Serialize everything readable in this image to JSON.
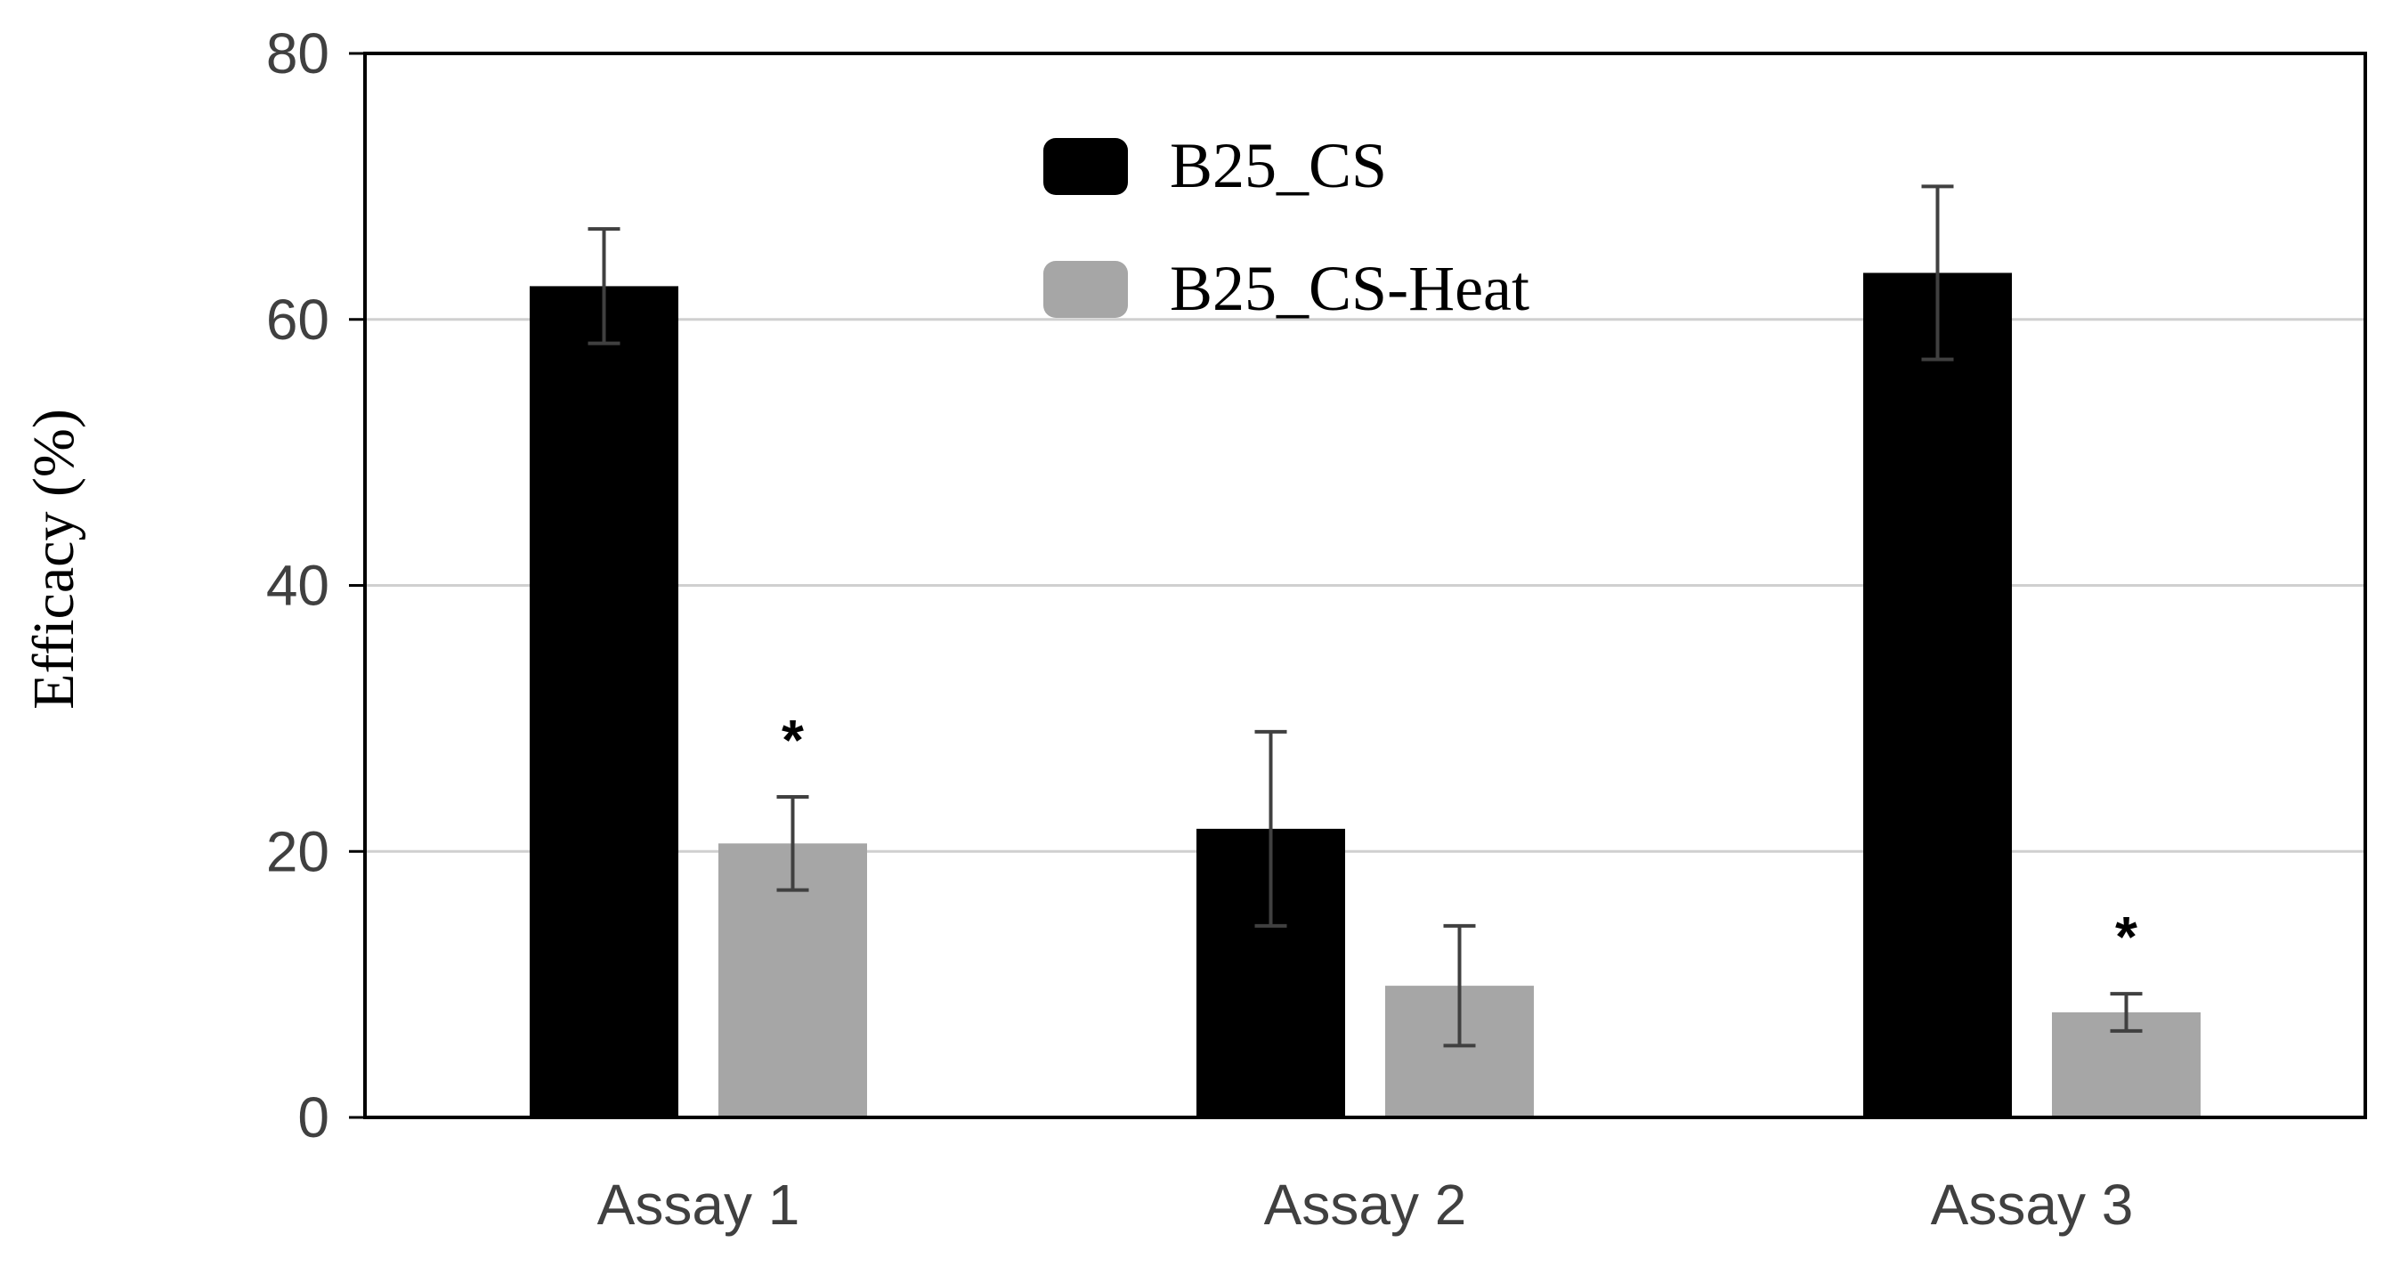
{
  "chart_data": {
    "type": "bar",
    "title": "",
    "xlabel": "",
    "ylabel": "Efficacy (%)",
    "ylim": [
      0,
      80
    ],
    "yticks": [
      0,
      20,
      40,
      60,
      80
    ],
    "grid": true,
    "legend_position": "top-center",
    "categories": [
      "Assay 1",
      "Assay 2",
      "Assay 3"
    ],
    "series": [
      {
        "name": "B25_CS",
        "color": "#000000",
        "values": [
          62.5,
          21.7,
          63.5
        ],
        "errors": [
          4.3,
          7.3,
          6.5
        ]
      },
      {
        "name": "B25_CS-Heat",
        "color": "#a6a6a6",
        "values": [
          20.6,
          9.9,
          7.9
        ],
        "errors": [
          3.5,
          4.5,
          1.4
        ]
      }
    ],
    "annotations": [
      {
        "category": "Assay 1",
        "series": "B25_CS-Heat",
        "text": "*"
      },
      {
        "category": "Assay 3",
        "series": "B25_CS-Heat",
        "text": "*"
      }
    ]
  }
}
